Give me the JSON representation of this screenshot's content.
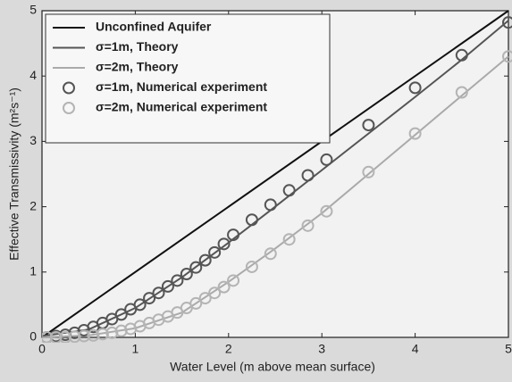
{
  "chart_data": {
    "type": "line",
    "xlabel": "Water Level (m above mean surface)",
    "ylabel": "Effective Transmissivity (m²s⁻¹)",
    "xlim": [
      0,
      5
    ],
    "ylim": [
      0,
      5
    ],
    "xticks": [
      0,
      1,
      2,
      3,
      4,
      5
    ],
    "yticks": [
      0,
      1,
      2,
      3,
      4,
      5
    ],
    "legend": "upper-left",
    "series": [
      {
        "name": "Unconfined Aquifer",
        "color": "#111111",
        "style": "line",
        "x": [
          0,
          5
        ],
        "values": [
          0,
          5
        ]
      },
      {
        "name": "σ=1m, Theory",
        "color": "#555555",
        "style": "line",
        "x": [
          0,
          0.5,
          1,
          1.5,
          2,
          2.5,
          3,
          3.5,
          4,
          4.5,
          5
        ],
        "values": [
          0.02,
          0.12,
          0.45,
          0.92,
          1.45,
          2.0,
          2.56,
          3.12,
          3.68,
          4.25,
          4.85
        ]
      },
      {
        "name": "σ=2m, Theory",
        "color": "#aaaaaa",
        "style": "line",
        "x": [
          0,
          0.5,
          1,
          1.5,
          2,
          2.5,
          3,
          3.5,
          4,
          4.5,
          5
        ],
        "values": [
          0,
          0.03,
          0.14,
          0.38,
          0.85,
          1.36,
          1.9,
          2.5,
          3.1,
          3.7,
          4.3
        ]
      },
      {
        "name": "σ=1m, Numerical experiment",
        "color": "#555555",
        "style": "markers",
        "x": [
          0.05,
          0.15,
          0.25,
          0.35,
          0.45,
          0.55,
          0.65,
          0.75,
          0.85,
          0.95,
          1.05,
          1.15,
          1.25,
          1.35,
          1.45,
          1.55,
          1.65,
          1.75,
          1.85,
          1.95,
          2.05,
          2.25,
          2.45,
          2.65,
          2.85,
          3.05,
          3.5,
          4.0,
          4.5,
          5.0
        ],
        "values": [
          0.0,
          0.02,
          0.04,
          0.07,
          0.11,
          0.16,
          0.22,
          0.28,
          0.35,
          0.43,
          0.5,
          0.6,
          0.68,
          0.78,
          0.87,
          0.97,
          1.07,
          1.18,
          1.3,
          1.43,
          1.57,
          1.8,
          2.03,
          2.25,
          2.48,
          2.72,
          3.25,
          3.82,
          4.32,
          4.82
        ]
      },
      {
        "name": "σ=2m, Numerical experiment",
        "color": "#b4b4b4",
        "style": "markers",
        "x": [
          0.05,
          0.15,
          0.25,
          0.35,
          0.45,
          0.55,
          0.65,
          0.75,
          0.85,
          0.95,
          1.05,
          1.15,
          1.25,
          1.35,
          1.45,
          1.55,
          1.65,
          1.75,
          1.85,
          1.95,
          2.05,
          2.25,
          2.45,
          2.65,
          2.85,
          3.05,
          3.5,
          4.0,
          4.5,
          5.0
        ],
        "values": [
          0,
          0,
          0,
          0.01,
          0.02,
          0.03,
          0.05,
          0.07,
          0.1,
          0.13,
          0.17,
          0.22,
          0.27,
          0.32,
          0.38,
          0.45,
          0.52,
          0.6,
          0.68,
          0.77,
          0.87,
          1.08,
          1.28,
          1.5,
          1.71,
          1.93,
          2.53,
          3.12,
          3.75,
          4.3
        ]
      }
    ]
  }
}
